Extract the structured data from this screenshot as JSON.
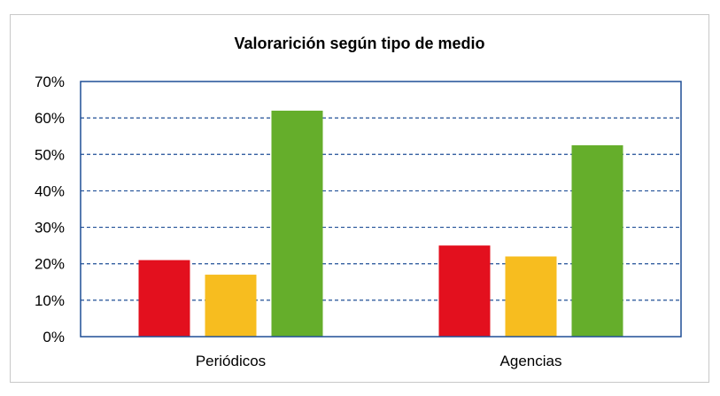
{
  "chart_data": {
    "type": "bar",
    "title": "Valorarición según tipo de medio",
    "xlabel": "",
    "ylabel": "",
    "categories": [
      "Periódicos",
      "Agencias"
    ],
    "series": [
      {
        "values": [
          0.21,
          0.25
        ],
        "color": "#e3101e"
      },
      {
        "values": [
          0.17,
          0.22
        ],
        "color": "#f7bd1f"
      },
      {
        "values": [
          0.62,
          0.525
        ],
        "color": "#65ae2b"
      }
    ],
    "ylim": [
      0,
      0.7
    ],
    "yticks": [
      0,
      0.1,
      0.2,
      0.3,
      0.4,
      0.5,
      0.6,
      0.7
    ],
    "ytick_labels": [
      "0%",
      "10%",
      "20%",
      "30%",
      "40%",
      "50%",
      "60%",
      "70%"
    ],
    "grid": true,
    "grid_style": "dashed",
    "grid_color": "#1f4e96",
    "plot_border_color": "#1f4e96",
    "legend": "none"
  }
}
